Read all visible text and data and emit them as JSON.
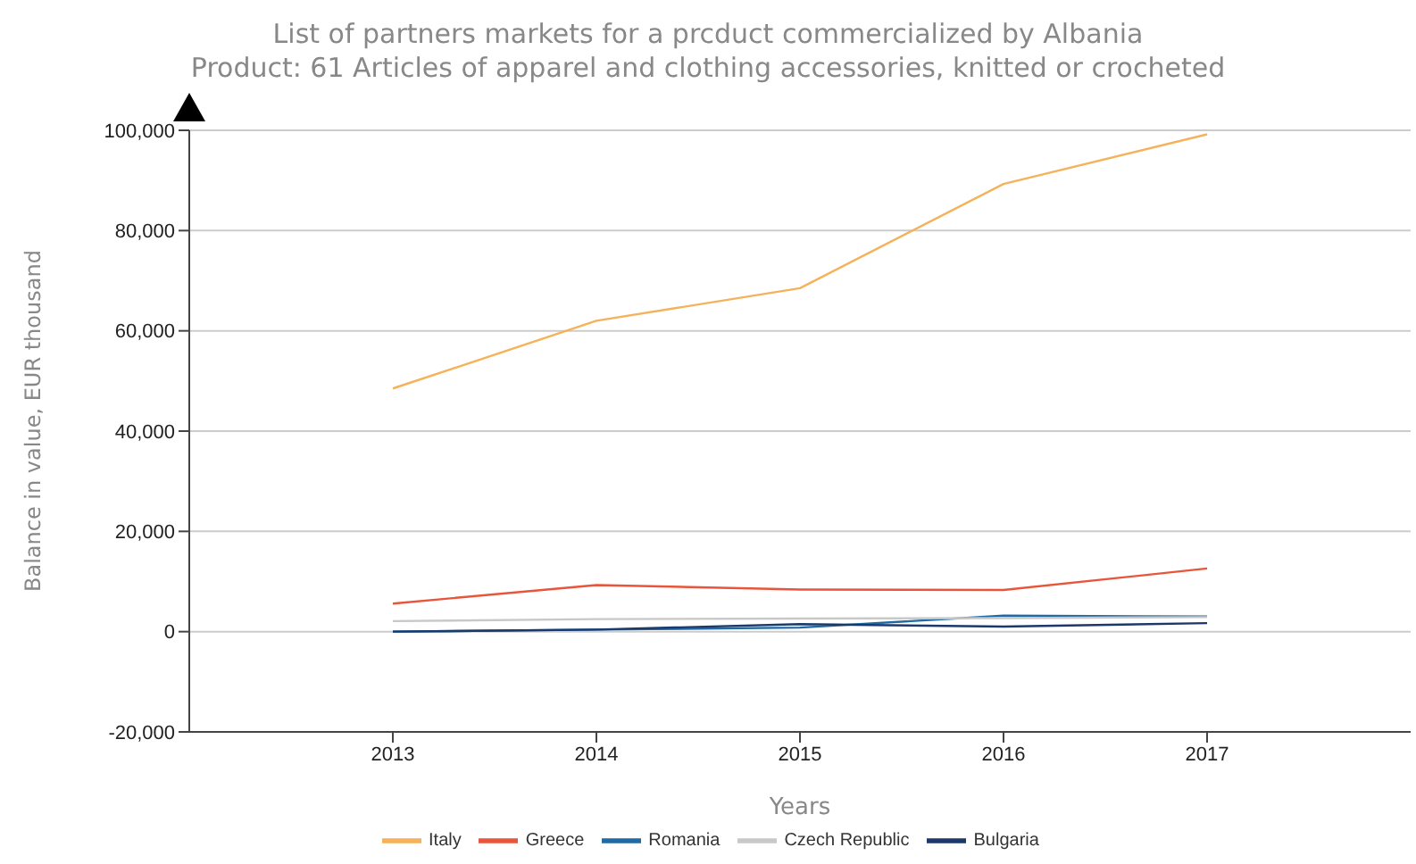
{
  "chart_data": {
    "type": "line",
    "title": "List of partners markets for a prcduct commercialized by Albania",
    "subtitle": "Product: 61 Articles of apparel and clothing accessories, knitted or crocheted",
    "xlabel": "Years",
    "ylabel": "Balance in value, EUR thousand",
    "x": [
      2013,
      2014,
      2015,
      2016,
      2017
    ],
    "series": [
      {
        "name": "Italy",
        "color": "#f5b25a",
        "values": [
          48500,
          62000,
          68500,
          89300,
          99200
        ]
      },
      {
        "name": "Greece",
        "color": "#e8553a",
        "values": [
          5600,
          9300,
          8400,
          8300,
          12600
        ]
      },
      {
        "name": "Romania",
        "color": "#1f6aa5",
        "values": [
          0,
          400,
          800,
          3200,
          3000
        ]
      },
      {
        "name": "Czech Republic",
        "color": "#c8c8c8",
        "values": [
          2100,
          2500,
          2600,
          2700,
          2900
        ]
      },
      {
        "name": "Bulgaria",
        "color": "#1b3a6b",
        "values": [
          0,
          400,
          1500,
          1000,
          1700
        ]
      }
    ],
    "xlim": [
      2012,
      2018
    ],
    "xticks": [
      2013,
      2014,
      2015,
      2016,
      2017
    ],
    "ylim": [
      -20000,
      100000
    ],
    "yticks": [
      {
        "value": -20000,
        "label": "-20,000"
      },
      0,
      {
        "value": 20000,
        "label": "20,000"
      },
      {
        "value": 40000,
        "label": "40,000"
      },
      {
        "value": 60000,
        "label": "60,000"
      },
      {
        "value": 80000,
        "label": "80,000"
      },
      {
        "value": 100000,
        "label": "100,000"
      }
    ],
    "grid": "y",
    "legend": "bottom",
    "marker": "none",
    "line_style": "solid"
  }
}
